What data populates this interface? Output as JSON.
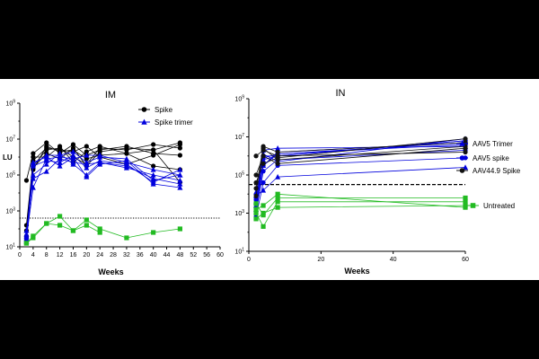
{
  "chart_data": [
    {
      "type": "line",
      "title": "IM",
      "xlabel": "Weeks",
      "ylabel": "LU",
      "x_ticks": [
        "0",
        "4",
        "8",
        "12",
        "16",
        "20",
        "24",
        "28",
        "32",
        "36",
        "40",
        "44",
        "48",
        "52",
        "56",
        "60"
      ],
      "y_ticks": [
        "10¹",
        "10³",
        "10⁵",
        "10⁷",
        "10⁹"
      ],
      "y_scale": "log10",
      "xlim": [
        0,
        60
      ],
      "ylim_log10": [
        1,
        9
      ],
      "threshold_log10": 2.6,
      "threshold_style": "dotted",
      "legend_position": "top-right",
      "series": [
        {
          "name": "Spike",
          "color": "#000000",
          "marker": "circle",
          "legend": true,
          "groups": [
            [
              [
                2,
                1.3
              ],
              [
                4,
                5.3
              ],
              [
                8,
                6.6
              ],
              [
                12,
                6.3
              ],
              [
                16,
                6.4
              ],
              [
                20,
                5.9
              ],
              [
                24,
                6.1
              ],
              [
                32,
                6.2
              ],
              [
                40,
                5.5
              ],
              [
                48,
                5.3
              ]
            ],
            [
              [
                2,
                2.2
              ],
              [
                4,
                5.8
              ],
              [
                8,
                6.5
              ],
              [
                12,
                6.4
              ],
              [
                16,
                6.3
              ],
              [
                20,
                6.6
              ],
              [
                24,
                6.0
              ],
              [
                32,
                5.6
              ],
              [
                40,
                6.1
              ],
              [
                48,
                6.7
              ]
            ],
            [
              [
                2,
                1.5
              ],
              [
                4,
                5.5
              ],
              [
                8,
                6.4
              ],
              [
                12,
                6.5
              ],
              [
                16,
                6.0
              ],
              [
                20,
                5.6
              ],
              [
                24,
                6.5
              ],
              [
                32,
                6.4
              ],
              [
                40,
                6.7
              ],
              [
                48,
                6.5
              ]
            ],
            [
              [
                2,
                4.7
              ],
              [
                4,
                6.2
              ],
              [
                8,
                6.8
              ],
              [
                12,
                6.2
              ],
              [
                16,
                6.7
              ],
              [
                20,
                6.1
              ],
              [
                24,
                6.4
              ],
              [
                32,
                6.6
              ],
              [
                40,
                6.2
              ],
              [
                48,
                6.1
              ]
            ],
            [
              [
                2,
                1.9
              ],
              [
                4,
                5.4
              ],
              [
                8,
                6.2
              ],
              [
                12,
                5.9
              ],
              [
                16,
                6.5
              ],
              [
                20,
                5.5
              ],
              [
                24,
                6.3
              ],
              [
                32,
                6.5
              ],
              [
                40,
                6.4
              ],
              [
                48,
                6.8
              ]
            ],
            [
              [
                2,
                1.6
              ],
              [
                4,
                6.0
              ],
              [
                8,
                6.0
              ],
              [
                12,
                6.6
              ],
              [
                16,
                5.7
              ],
              [
                20,
                6.3
              ],
              [
                24,
                6.6
              ],
              [
                32,
                6.2
              ],
              [
                40,
                6.4
              ],
              [
                48,
                4.6
              ]
            ]
          ]
        },
        {
          "name": "Spike trimer",
          "color": "#0000dd",
          "marker": "triangle",
          "legend": true,
          "groups": [
            [
              [
                2,
                1.7
              ],
              [
                4,
                5.6
              ],
              [
                8,
                6.1
              ],
              [
                12,
                6.1
              ],
              [
                16,
                6.3
              ],
              [
                20,
                5.7
              ],
              [
                24,
                6.0
              ],
              [
                32,
                5.9
              ],
              [
                40,
                4.7
              ],
              [
                48,
                5.0
              ]
            ],
            [
              [
                2,
                1.5
              ],
              [
                4,
                4.3
              ],
              [
                8,
                5.9
              ],
              [
                12,
                6.0
              ],
              [
                16,
                5.9
              ],
              [
                20,
                6.1
              ],
              [
                24,
                6.1
              ],
              [
                32,
                5.7
              ],
              [
                40,
                5.3
              ],
              [
                48,
                5.0
              ]
            ],
            [
              [
                2,
                1.6
              ],
              [
                4,
                5.0
              ],
              [
                8,
                5.6
              ],
              [
                12,
                6.2
              ],
              [
                16,
                5.6
              ],
              [
                20,
                5.0
              ],
              [
                24,
                5.7
              ],
              [
                32,
                5.4
              ],
              [
                40,
                5.0
              ],
              [
                48,
                4.7
              ]
            ],
            [
              [
                2,
                1.4
              ],
              [
                4,
                5.5
              ],
              [
                8,
                5.8
              ],
              [
                12,
                5.7
              ],
              [
                16,
                6.1
              ],
              [
                20,
                5.4
              ],
              [
                24,
                5.8
              ],
              [
                32,
                5.6
              ],
              [
                40,
                4.6
              ],
              [
                48,
                5.3
              ]
            ],
            [
              [
                2,
                1.9
              ],
              [
                4,
                4.8
              ],
              [
                8,
                5.2
              ],
              [
                12,
                5.9
              ],
              [
                16,
                5.7
              ],
              [
                20,
                5.6
              ],
              [
                24,
                5.7
              ],
              [
                32,
                5.5
              ],
              [
                40,
                4.8
              ],
              [
                48,
                4.5
              ]
            ],
            [
              [
                2,
                1.3
              ],
              [
                4,
                5.7
              ],
              [
                8,
                6.0
              ],
              [
                12,
                5.5
              ],
              [
                16,
                6.0
              ],
              [
                20,
                4.9
              ],
              [
                24,
                5.6
              ],
              [
                32,
                5.8
              ],
              [
                40,
                4.5
              ],
              [
                48,
                4.3
              ]
            ]
          ]
        },
        {
          "name": "",
          "color": "#22bb22",
          "marker": "square",
          "legend": false,
          "groups": [
            [
              [
                2,
                1.2
              ],
              [
                4,
                1.6
              ],
              [
                8,
                2.3
              ],
              [
                12,
                2.7
              ],
              [
                16,
                1.9
              ],
              [
                20,
                2.5
              ],
              [
                24,
                2.0
              ],
              [
                32,
                1.5
              ],
              [
                40,
                1.8
              ],
              [
                48,
                2.0
              ]
            ],
            [
              [
                2,
                1.2
              ],
              [
                4,
                1.5
              ],
              [
                8,
                2.3
              ],
              [
                12,
                2.2
              ],
              [
                16,
                1.9
              ],
              [
                20,
                2.2
              ],
              [
                24,
                1.8
              ]
            ]
          ]
        }
      ]
    },
    {
      "type": "line",
      "title": "IN",
      "xlabel": "Weeks",
      "x_ticks": [
        "0",
        "20",
        "40",
        "60"
      ],
      "y_ticks": [
        "10¹",
        "10³",
        "10⁵",
        "10⁷",
        "10⁹"
      ],
      "y_scale": "log10",
      "xlim": [
        0,
        60
      ],
      "ylim_log10": [
        1,
        9
      ],
      "threshold_log10": 4.5,
      "threshold_style": "dashed",
      "legend_position": "right",
      "series": [
        {
          "name": "AAV5 Trimer",
          "color": "#0000dd",
          "marker": "triangle",
          "legend": true,
          "groups": [
            [
              [
                2,
                3.6
              ],
              [
                4,
                6.1
              ],
              [
                8,
                5.7
              ],
              [
                60,
                6.9
              ]
            ],
            [
              [
                2,
                3.2
              ],
              [
                4,
                5.5
              ],
              [
                8,
                6.2
              ],
              [
                60,
                6.7
              ]
            ],
            [
              [
                2,
                4.1
              ],
              [
                4,
                5.8
              ],
              [
                8,
                6.0
              ],
              [
                60,
                6.8
              ]
            ],
            [
              [
                2,
                3.4
              ],
              [
                4,
                6.3
              ],
              [
                8,
                6.4
              ],
              [
                60,
                6.5
              ]
            ],
            [
              [
                2,
                3.9
              ],
              [
                4,
                4.2
              ],
              [
                8,
                4.9
              ],
              [
                60,
                5.4
              ]
            ]
          ]
        },
        {
          "name": "AAV5 spike",
          "color": "#0000dd",
          "marker": "circle",
          "legend": true,
          "groups": [
            [
              [
                2,
                3.0
              ],
              [
                4,
                5.2
              ],
              [
                8,
                5.8
              ],
              [
                60,
                6.3
              ]
            ],
            [
              [
                2,
                3.3
              ],
              [
                4,
                6.0
              ],
              [
                8,
                6.0
              ],
              [
                60,
                6.8
              ]
            ],
            [
              [
                2,
                3.5
              ],
              [
                4,
                5.5
              ],
              [
                8,
                6.1
              ],
              [
                60,
                6.7
              ]
            ],
            [
              [
                2,
                2.8
              ],
              [
                4,
                4.6
              ],
              [
                8,
                5.5
              ],
              [
                60,
                5.9
              ]
            ],
            [
              [
                2,
                3.7
              ],
              [
                4,
                5.9
              ],
              [
                8,
                6.1
              ],
              [
                60,
                6.6
              ]
            ]
          ]
        },
        {
          "name": "AAV44.9 Spike",
          "color": "#111111",
          "marker": "circle",
          "legend": true,
          "groups": [
            [
              [
                2,
                4.3
              ],
              [
                4,
                6.5
              ],
              [
                8,
                6.2
              ],
              [
                60,
                6.7
              ]
            ],
            [
              [
                2,
                5.0
              ],
              [
                4,
                6.0
              ],
              [
                8,
                5.6
              ],
              [
                60,
                6.4
              ]
            ],
            [
              [
                2,
                3.9
              ],
              [
                4,
                6.4
              ],
              [
                8,
                5.8
              ],
              [
                60,
                6.5
              ]
            ],
            [
              [
                2,
                4.6
              ],
              [
                4,
                5.6
              ],
              [
                8,
                5.9
              ],
              [
                60,
                6.9
              ]
            ],
            [
              [
                2,
                6.0
              ],
              [
                4,
                6.3
              ],
              [
                8,
                6.0
              ],
              [
                60,
                6.2
              ]
            ]
          ]
        },
        {
          "name": "Untreated",
          "color": "#22bb22",
          "marker": "square",
          "legend": true,
          "groups": [
            [
              [
                2,
                2.7
              ],
              [
                4,
                3.0
              ],
              [
                8,
                3.3
              ],
              [
                60,
                3.4
              ]
            ],
            [
              [
                2,
                3.0
              ],
              [
                4,
                2.3
              ],
              [
                8,
                3.6
              ],
              [
                60,
                3.6
              ]
            ],
            [
              [
                2,
                3.5
              ],
              [
                4,
                2.9
              ],
              [
                8,
                3.8
              ],
              [
                60,
                3.8
              ]
            ],
            [
              [
                2,
                3.2
              ],
              [
                4,
                3.4
              ],
              [
                8,
                4.0
              ],
              [
                60,
                3.3
              ]
            ]
          ]
        }
      ]
    }
  ]
}
